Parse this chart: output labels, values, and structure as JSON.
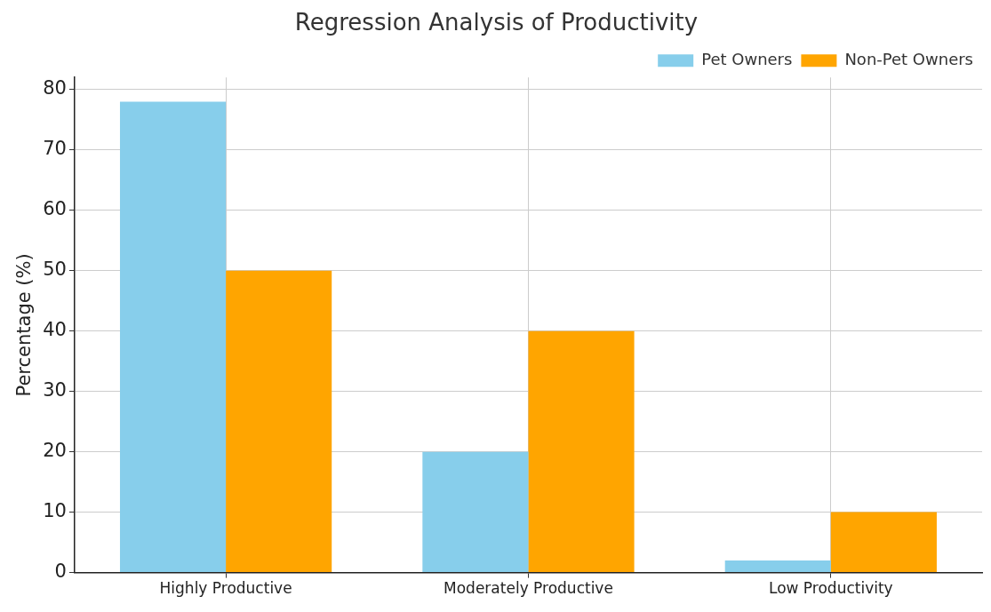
{
  "chart_data": {
    "type": "bar",
    "title": "Regression Analysis of Productivity",
    "ylabel": "Percentage (%)",
    "categories": [
      "Highly Productive",
      "Moderately Productive",
      "Low Productivity"
    ],
    "series": [
      {
        "name": "Pet Owners",
        "color": "#87ceeb",
        "values": [
          78,
          20,
          2
        ]
      },
      {
        "name": "Non-Pet Owners",
        "color": "#ffa500",
        "values": [
          50,
          40,
          10
        ]
      }
    ],
    "ylim": [
      0,
      82
    ],
    "yticks": [
      0,
      10,
      20,
      30,
      40,
      50,
      60,
      70,
      80
    ],
    "grid": true,
    "legend": "top right"
  }
}
